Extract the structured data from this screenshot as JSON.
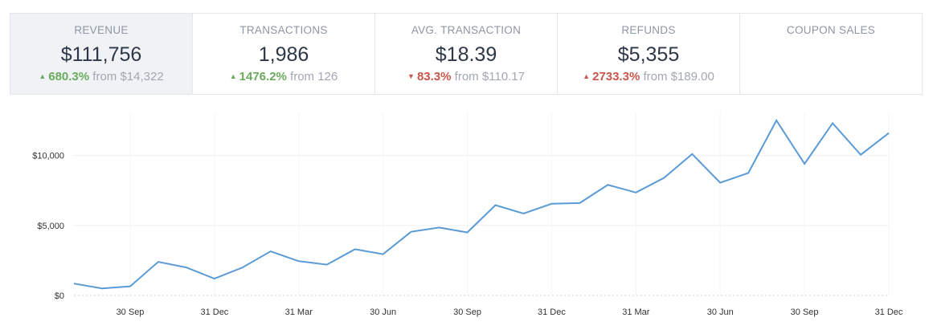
{
  "stats": [
    {
      "label": "REVENUE",
      "value": "$111,756",
      "arrow": "▲",
      "change": "680.3%",
      "from": "from $14,322",
      "tone": "up-good"
    },
    {
      "label": "TRANSACTIONS",
      "value": "1,986",
      "arrow": "▲",
      "change": "1476.2%",
      "from": "from 126",
      "tone": "up-good"
    },
    {
      "label": "AVG. TRANSACTION",
      "value": "$18.39",
      "arrow": "▼",
      "change": "83.3%",
      "from": "from $110.17",
      "tone": "down-bad"
    },
    {
      "label": "REFUNDS",
      "value": "$5,355",
      "arrow": "▲",
      "change": "2733.3%",
      "from": "from $189.00",
      "tone": "up-bad"
    },
    {
      "label": "COUPON SALES",
      "value": "",
      "arrow": "",
      "change": "",
      "from": "",
      "tone": ""
    }
  ],
  "colors": {
    "line": "#5b9bd5",
    "positive": "#6aab5c",
    "negative": "#c9554b"
  },
  "chart_data": {
    "type": "line",
    "series": [
      {
        "values": [
          850,
          500,
          650,
          2400,
          2000,
          1200,
          2000,
          3150,
          2450,
          2200,
          3300,
          2950,
          4550,
          4850,
          4500,
          6450,
          5850,
          6550,
          6600,
          7900,
          7350,
          8400,
          10100,
          8050,
          8750,
          12500,
          9400,
          12300,
          10050,
          11600
        ]
      }
    ],
    "xticks": [
      "30 Sep",
      "31 Dec",
      "31 Mar",
      "30 Jun",
      "30 Sep",
      "31 Dec",
      "31 Mar",
      "30 Jun",
      "30 Sep",
      "31 Dec"
    ],
    "yticks": [
      "$0",
      "$5,000",
      "$10,000"
    ],
    "ylim": [
      0,
      12500
    ],
    "grid": true,
    "xlabel": "",
    "ylabel": ""
  }
}
